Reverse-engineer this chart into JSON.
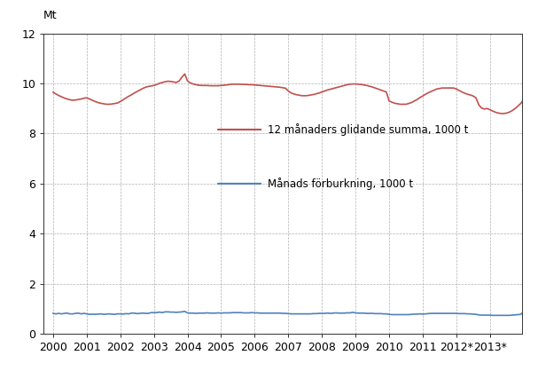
{
  "ylabel_text": "Mt",
  "ylim": [
    0,
    12
  ],
  "yticks": [
    0,
    2,
    4,
    6,
    8,
    10,
    12
  ],
  "xlim_start": 1999.7,
  "xlim_end": 2013.95,
  "xtick_labels": [
    "2000",
    "2001",
    "2002",
    "2003",
    "2004",
    "2005",
    "2006",
    "2007",
    "2008",
    "2009",
    "2010",
    "2011",
    "2012*",
    "2013*"
  ],
  "xtick_positions": [
    2000,
    2001,
    2002,
    2003,
    2004,
    2005,
    2006,
    2007,
    2008,
    2009,
    2010,
    2011,
    2012,
    2013
  ],
  "line1_color": "#c0504d",
  "line2_color": "#4f81bd",
  "legend1_label": "12 månaders glidande summa, 1000 t",
  "legend2_label": "Månads förburkning, 1000 t",
  "background_color": "#ffffff",
  "grid_color": "#b0b0b0",
  "line_width": 1.2,
  "rolling12": [
    9.65,
    9.58,
    9.52,
    9.47,
    9.42,
    9.38,
    9.35,
    9.33,
    9.34,
    9.36,
    9.38,
    9.41,
    9.43,
    9.38,
    9.33,
    9.28,
    9.24,
    9.21,
    9.19,
    9.17,
    9.17,
    9.18,
    9.2,
    9.22,
    9.28,
    9.35,
    9.42,
    9.49,
    9.55,
    9.62,
    9.68,
    9.74,
    9.8,
    9.85,
    9.88,
    9.9,
    9.92,
    9.96,
    10.01,
    10.04,
    10.07,
    10.09,
    10.08,
    10.06,
    10.04,
    10.1,
    10.25,
    10.38,
    10.1,
    10.02,
    9.98,
    9.95,
    9.93,
    9.92,
    9.92,
    9.92,
    9.91,
    9.91,
    9.91,
    9.91,
    9.92,
    9.93,
    9.94,
    9.96,
    9.97,
    9.97,
    9.97,
    9.97,
    9.96,
    9.96,
    9.95,
    9.95,
    9.94,
    9.93,
    9.92,
    9.91,
    9.9,
    9.89,
    9.88,
    9.87,
    9.86,
    9.85,
    9.83,
    9.81,
    9.7,
    9.62,
    9.58,
    9.55,
    9.53,
    9.51,
    9.51,
    9.52,
    9.54,
    9.56,
    9.59,
    9.62,
    9.66,
    9.7,
    9.74,
    9.77,
    9.8,
    9.83,
    9.86,
    9.89,
    9.92,
    9.95,
    9.97,
    9.98,
    9.98,
    9.97,
    9.96,
    9.94,
    9.92,
    9.89,
    9.86,
    9.82,
    9.78,
    9.74,
    9.7,
    9.66,
    9.3,
    9.25,
    9.21,
    9.19,
    9.17,
    9.17,
    9.17,
    9.2,
    9.24,
    9.3,
    9.36,
    9.44,
    9.5,
    9.57,
    9.63,
    9.68,
    9.73,
    9.78,
    9.8,
    9.82,
    9.82,
    9.82,
    9.82,
    9.82,
    9.78,
    9.72,
    9.66,
    9.61,
    9.57,
    9.54,
    9.5,
    9.43,
    9.15,
    9.02,
    8.98,
    9.0,
    8.95,
    8.9,
    8.85,
    8.82,
    8.8,
    8.8,
    8.82,
    8.86,
    8.92,
    9.0,
    9.1,
    9.2,
    9.35,
    9.48,
    9.6
  ],
  "monthly": [
    0.82,
    0.8,
    0.82,
    0.8,
    0.82,
    0.83,
    0.8,
    0.8,
    0.82,
    0.83,
    0.8,
    0.82,
    0.8,
    0.78,
    0.79,
    0.78,
    0.79,
    0.8,
    0.78,
    0.79,
    0.8,
    0.79,
    0.78,
    0.8,
    0.8,
    0.79,
    0.81,
    0.8,
    0.83,
    0.83,
    0.81,
    0.82,
    0.83,
    0.82,
    0.82,
    0.85,
    0.85,
    0.85,
    0.87,
    0.85,
    0.88,
    0.88,
    0.87,
    0.87,
    0.86,
    0.87,
    0.88,
    0.9,
    0.84,
    0.83,
    0.83,
    0.82,
    0.83,
    0.83,
    0.83,
    0.84,
    0.83,
    0.83,
    0.83,
    0.84,
    0.83,
    0.84,
    0.84,
    0.84,
    0.85,
    0.85,
    0.85,
    0.85,
    0.84,
    0.84,
    0.84,
    0.85,
    0.84,
    0.84,
    0.83,
    0.83,
    0.83,
    0.83,
    0.83,
    0.83,
    0.83,
    0.83,
    0.82,
    0.82,
    0.81,
    0.8,
    0.8,
    0.8,
    0.8,
    0.8,
    0.8,
    0.8,
    0.8,
    0.81,
    0.81,
    0.82,
    0.82,
    0.82,
    0.83,
    0.82,
    0.83,
    0.84,
    0.83,
    0.83,
    0.83,
    0.84,
    0.84,
    0.86,
    0.84,
    0.83,
    0.83,
    0.83,
    0.82,
    0.82,
    0.82,
    0.81,
    0.81,
    0.81,
    0.8,
    0.8,
    0.78,
    0.77,
    0.77,
    0.77,
    0.77,
    0.77,
    0.77,
    0.77,
    0.78,
    0.79,
    0.79,
    0.8,
    0.79,
    0.8,
    0.81,
    0.82,
    0.82,
    0.82,
    0.82,
    0.82,
    0.82,
    0.82,
    0.82,
    0.82,
    0.82,
    0.81,
    0.81,
    0.81,
    0.8,
    0.8,
    0.79,
    0.78,
    0.76,
    0.75,
    0.75,
    0.75,
    0.75,
    0.74,
    0.74,
    0.74,
    0.74,
    0.74,
    0.74,
    0.74,
    0.75,
    0.76,
    0.77,
    0.78,
    0.88,
    0.87,
    1.0
  ]
}
